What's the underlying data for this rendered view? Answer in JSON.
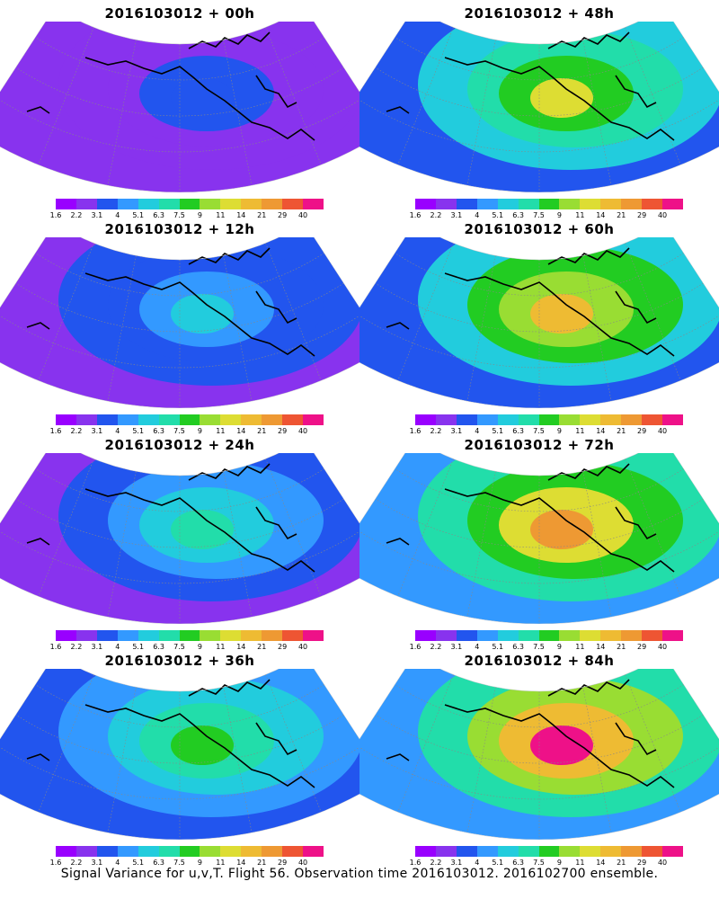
{
  "panels": [
    {
      "title": "2016103012 + 00h",
      "intensity": 0.15
    },
    {
      "title": "2016103012 + 48h",
      "intensity": 0.55
    },
    {
      "title": "2016103012 + 12h",
      "intensity": 0.25
    },
    {
      "title": "2016103012 + 60h",
      "intensity": 0.62
    },
    {
      "title": "2016103012 + 24h",
      "intensity": 0.35
    },
    {
      "title": "2016103012 + 72h",
      "intensity": 0.72
    },
    {
      "title": "2016103012 + 36h",
      "intensity": 0.45
    },
    {
      "title": "2016103012 + 84h",
      "intensity": 0.82
    }
  ],
  "colorbar": {
    "colors": [
      "#9900ff",
      "#8833ee",
      "#2255ee",
      "#3399ff",
      "#22ccdd",
      "#22ddaa",
      "#22cc22",
      "#99dd33",
      "#dddd33",
      "#eebb33",
      "#ee9933",
      "#ee5533",
      "#ee1188"
    ],
    "labels": [
      "1.6",
      "2.2",
      "3.1",
      "4",
      "5.1",
      "6.3",
      "7.5",
      "9",
      "11",
      "14",
      "21",
      "29",
      "40"
    ]
  },
  "footer": "Signal Variance for u,v,T. Flight 56. Observation time 2016103012. 2016102700 ensemble."
}
